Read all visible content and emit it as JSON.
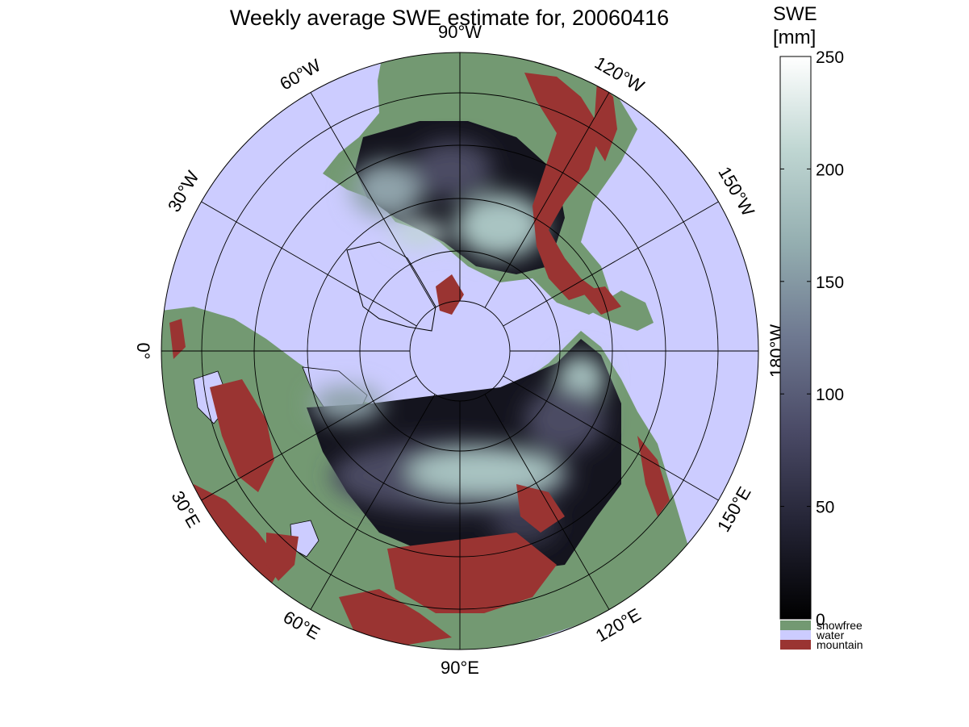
{
  "title": "Weekly average SWE estimate for, 20060416",
  "colorbar": {
    "title_line1": "SWE",
    "title_line2": "[mm]",
    "min": 0,
    "max": 250,
    "ticks": [
      0,
      50,
      100,
      150,
      200,
      250
    ],
    "tick_labels": [
      "0",
      "50",
      "100",
      "150",
      "200",
      "250"
    ],
    "gradient": [
      "#000000",
      "#232334",
      "#4a4a66",
      "#6e7890",
      "#94aeb0",
      "#bfd6d2",
      "#ffffff"
    ]
  },
  "legend": [
    {
      "label": "snowfree",
      "color": "#739972"
    },
    {
      "label": "water",
      "color": "#ccccff"
    },
    {
      "label": "mountain",
      "color": "#9a3432"
    }
  ],
  "map": {
    "projection": "polar stereographic (north pole)",
    "ocean_color": "#ccccff",
    "land_color": "#739972",
    "mountain_color": "#9a3432",
    "snow_dark": "#14141e",
    "snow_mid": "#4b4b63",
    "snow_light": "#a9c4c2",
    "longitude_labels": [
      {
        "lon": -90,
        "text": "90°W"
      },
      {
        "lon": -60,
        "text": "60°W"
      },
      {
        "lon": -30,
        "text": "30°W"
      },
      {
        "lon": 0,
        "text": "0°"
      },
      {
        "lon": 30,
        "text": "30°E"
      },
      {
        "lon": 60,
        "text": "60°E"
      },
      {
        "lon": 90,
        "text": "90°E"
      },
      {
        "lon": 120,
        "text": "120°E"
      },
      {
        "lon": 150,
        "text": "150°E"
      },
      {
        "lon": 180,
        "text": "180°W"
      },
      {
        "lon": -150,
        "text": "150°W"
      },
      {
        "lon": -120,
        "text": "120°W"
      }
    ]
  }
}
